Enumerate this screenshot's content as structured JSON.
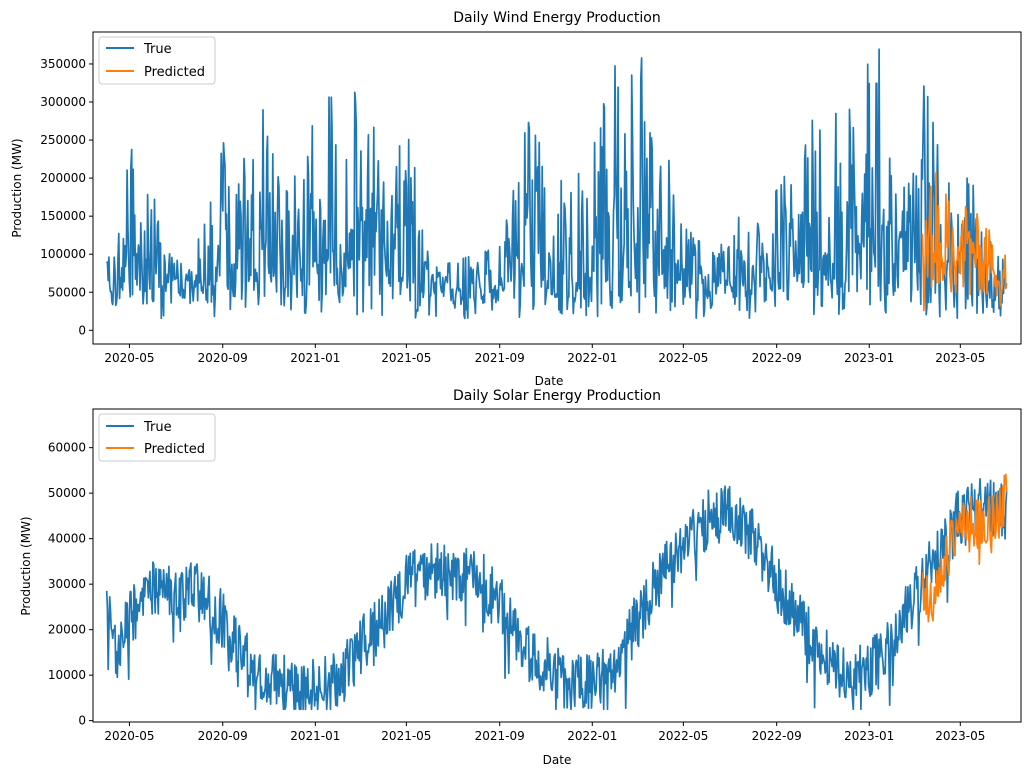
{
  "chart_data": [
    {
      "type": "line",
      "title": "Daily Wind Energy Production",
      "xlabel": "Date",
      "ylabel": "Production (MW)",
      "xlim": [
        "2020-03-14",
        "2023-07-20"
      ],
      "ylim": [
        -18000,
        392000
      ],
      "x_ticks": [
        "2020-05",
        "2020-09",
        "2021-01",
        "2021-05",
        "2021-09",
        "2022-01",
        "2022-05",
        "2022-09",
        "2023-01",
        "2023-05"
      ],
      "y_ticks": [
        0,
        50000,
        100000,
        150000,
        200000,
        250000,
        300000,
        350000
      ],
      "legend": {
        "placement": "upper-left",
        "entries": [
          "True",
          "Predicted"
        ]
      },
      "series": [
        {
          "name": "True",
          "color": "#1f77b4",
          "x_start": "2020-04-01",
          "x_end": "2023-07-01",
          "anchors": [
            [
              "2020-04-01",
              88000
            ],
            [
              "2020-04-15",
              165000
            ],
            [
              "2020-04-25",
              210000
            ],
            [
              "2020-05-03",
              252000
            ],
            [
              "2020-05-20",
              180000
            ],
            [
              "2020-06-14",
              172000
            ],
            [
              "2020-07-15",
              80000
            ],
            [
              "2020-08-12",
              150000
            ],
            [
              "2020-09-05",
              260000
            ],
            [
              "2020-10-05",
              245000
            ],
            [
              "2020-10-25",
              297000
            ],
            [
              "2020-11-25",
              180000
            ],
            [
              "2020-12-20",
              245000
            ],
            [
              "2021-01-10",
              307000
            ],
            [
              "2021-02-15",
              305000
            ],
            [
              "2021-03-06",
              326000
            ],
            [
              "2021-04-05",
              230000
            ],
            [
              "2021-05-10",
              255000
            ],
            [
              "2021-06-01",
              80000
            ],
            [
              "2021-07-01",
              90000
            ],
            [
              "2021-08-01",
              100000
            ],
            [
              "2021-09-01",
              110000
            ],
            [
              "2021-10-01",
              288000
            ],
            [
              "2021-11-01",
              230000
            ],
            [
              "2021-12-01",
              180000
            ],
            [
              "2022-01-01",
              250000
            ],
            [
              "2022-01-20",
              363000
            ],
            [
              "2022-02-08",
              365000
            ],
            [
              "2022-03-10",
              357000
            ],
            [
              "2022-04-05",
              250000
            ],
            [
              "2022-05-01",
              150000
            ],
            [
              "2022-06-01",
              100000
            ],
            [
              "2022-07-01",
              160000
            ],
            [
              "2022-08-01",
              130000
            ],
            [
              "2022-09-10",
              200000
            ],
            [
              "2022-10-10",
              265000
            ],
            [
              "2022-11-05",
              300000
            ],
            [
              "2022-12-10",
              300000
            ],
            [
              "2023-01-01",
              355000
            ],
            [
              "2023-01-15",
              376000
            ],
            [
              "2023-02-01",
              180000
            ],
            [
              "2023-02-20",
              190000
            ],
            [
              "2023-03-10",
              351000
            ],
            [
              "2023-04-10",
              200000
            ],
            [
              "2023-05-15",
              200000
            ],
            [
              "2023-06-15",
              100000
            ],
            [
              "2023-07-01",
              90000
            ]
          ],
          "baseline": 55000
        },
        {
          "name": "Predicted",
          "color": "#ff7f0e",
          "x_start": "2023-03-12",
          "x_end": "2023-07-01",
          "anchors": [
            [
              "2023-03-12",
              140000
            ],
            [
              "2023-03-22",
              215000
            ],
            [
              "2023-04-01",
              205000
            ],
            [
              "2023-04-20",
              160000
            ],
            [
              "2023-05-01",
              205000
            ],
            [
              "2023-05-15",
              120000
            ],
            [
              "2023-06-01",
              190000
            ],
            [
              "2023-06-10",
              120000
            ],
            [
              "2023-06-25",
              60000
            ],
            [
              "2023-07-01",
              118000
            ]
          ],
          "baseline": 95000
        }
      ]
    },
    {
      "type": "line",
      "title": "Daily Solar Energy Production",
      "xlabel": "Date",
      "ylabel": "Production (MW)",
      "xlim": [
        "2020-03-14",
        "2023-07-20"
      ],
      "ylim": [
        -300,
        68500
      ],
      "x_ticks": [
        "2020-05",
        "2020-09",
        "2021-01",
        "2021-05",
        "2021-09",
        "2022-01",
        "2022-05",
        "2022-09",
        "2023-01",
        "2023-05"
      ],
      "y_ticks": [
        0,
        10000,
        20000,
        30000,
        40000,
        50000,
        60000
      ],
      "legend": {
        "placement": "upper-left",
        "entries": [
          "True",
          "Predicted"
        ]
      },
      "series": [
        {
          "name": "True",
          "color": "#1f77b4",
          "x_start": "2020-04-01",
          "x_end": "2023-07-01",
          "anchors": [
            [
              "2020-04-01",
              26000
            ],
            [
              "2020-04-15",
              15000
            ],
            [
              "2020-05-01",
              22000
            ],
            [
              "2020-06-01",
              30000
            ],
            [
              "2020-07-01",
              29000
            ],
            [
              "2020-08-01",
              28000
            ],
            [
              "2020-09-01",
              22000
            ],
            [
              "2020-10-01",
              13000
            ],
            [
              "2020-11-01",
              10000
            ],
            [
              "2020-12-01",
              7000
            ],
            [
              "2021-01-01",
              7000
            ],
            [
              "2021-02-01",
              9000
            ],
            [
              "2021-03-01",
              16000
            ],
            [
              "2021-04-01",
              22000
            ],
            [
              "2021-05-01",
              30000
            ],
            [
              "2021-06-01",
              33000
            ],
            [
              "2021-07-01",
              32000
            ],
            [
              "2021-08-01",
              32000
            ],
            [
              "2021-09-01",
              26000
            ],
            [
              "2021-10-01",
              16000
            ],
            [
              "2021-11-01",
              12000
            ],
            [
              "2021-12-01",
              8000
            ],
            [
              "2022-01-01",
              9000
            ],
            [
              "2022-02-01",
              12000
            ],
            [
              "2022-03-01",
              22000
            ],
            [
              "2022-04-01",
              32000
            ],
            [
              "2022-05-01",
              38000
            ],
            [
              "2022-06-01",
              44000
            ],
            [
              "2022-07-01",
              46000
            ],
            [
              "2022-08-01",
              40000
            ],
            [
              "2022-09-01",
              30000
            ],
            [
              "2022-10-01",
              22000
            ],
            [
              "2022-11-01",
              14000
            ],
            [
              "2022-12-01",
              10000
            ],
            [
              "2023-01-01",
              11000
            ],
            [
              "2023-02-01",
              17000
            ],
            [
              "2023-03-01",
              27000
            ],
            [
              "2023-04-01",
              36000
            ],
            [
              "2023-05-01",
              45000
            ],
            [
              "2023-06-01",
              48000
            ],
            [
              "2023-07-01",
              45000
            ]
          ],
          "noise": 6500
        },
        {
          "name": "Predicted",
          "color": "#ff7f0e",
          "x_start": "2023-03-12",
          "x_end": "2023-07-01",
          "anchors": [
            [
              "2023-03-12",
              29000
            ],
            [
              "2023-03-25",
              25000
            ],
            [
              "2023-04-10",
              34000
            ],
            [
              "2023-04-25",
              42000
            ],
            [
              "2023-05-10",
              45000
            ],
            [
              "2023-05-25",
              43000
            ],
            [
              "2023-06-10",
              44000
            ],
            [
              "2023-06-25",
              46000
            ],
            [
              "2023-07-01",
              52000
            ]
          ],
          "noise": 5500
        }
      ]
    }
  ]
}
